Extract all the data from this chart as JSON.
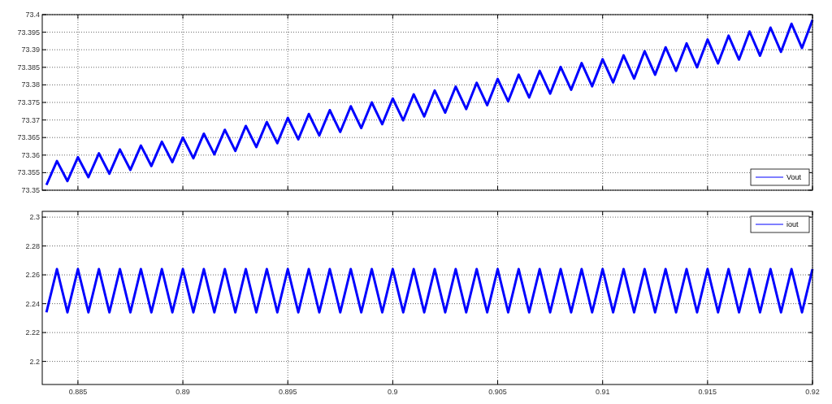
{
  "chart_data": [
    {
      "type": "line",
      "xlim": [
        0.8833,
        0.92
      ],
      "ylim": [
        73.35,
        73.4
      ],
      "xticks": [
        0.885,
        0.89,
        0.895,
        0.9,
        0.905,
        0.91,
        0.915,
        0.92
      ],
      "yticks": [
        73.35,
        73.355,
        73.36,
        73.365,
        73.37,
        73.375,
        73.38,
        73.385,
        73.39,
        73.395,
        73.4
      ],
      "grid": true,
      "legend": "bottom right",
      "tick_labels": "y",
      "marker": "none",
      "line_style": "solid",
      "x": [
        0.8835,
        0.884,
        0.8845,
        0.885,
        0.8855,
        0.886,
        0.8865,
        0.887,
        0.8875,
        0.888,
        0.8885,
        0.889,
        0.8895,
        0.89,
        0.8905,
        0.891,
        0.8915,
        0.892,
        0.8925,
        0.893,
        0.8935,
        0.894,
        0.8945,
        0.895,
        0.8955,
        0.896,
        0.8965,
        0.897,
        0.8975,
        0.898,
        0.8985,
        0.899,
        0.8995,
        0.9,
        0.9005,
        0.901,
        0.9015,
        0.902,
        0.9025,
        0.903,
        0.9035,
        0.904,
        0.9045,
        0.905,
        0.9055,
        0.906,
        0.9065,
        0.907,
        0.9075,
        0.908,
        0.9085,
        0.909,
        0.9095,
        0.91,
        0.9105,
        0.911,
        0.9115,
        0.912,
        0.9125,
        0.913,
        0.9135,
        0.914,
        0.9145,
        0.915,
        0.9155,
        0.916,
        0.9165,
        0.917,
        0.9175,
        0.918,
        0.9185,
        0.919,
        0.9195,
        0.92
      ],
      "series": [
        {
          "name": "Vout",
          "color": "#0000ff",
          "values": [
            73.3515,
            73.3583,
            73.3526,
            73.3594,
            73.3537,
            73.3605,
            73.3547,
            73.3616,
            73.3558,
            73.3627,
            73.3569,
            73.3638,
            73.358,
            73.365,
            73.3591,
            73.3661,
            73.3602,
            73.3672,
            73.3612,
            73.3683,
            73.3623,
            73.3694,
            73.3634,
            73.3706,
            73.3645,
            73.3717,
            73.3656,
            73.3728,
            73.3666,
            73.3739,
            73.3677,
            73.375,
            73.3688,
            73.3761,
            73.3699,
            73.3773,
            73.371,
            73.3784,
            73.3721,
            73.3795,
            73.3731,
            73.3806,
            73.3742,
            73.3817,
            73.3753,
            73.3829,
            73.3764,
            73.384,
            73.3775,
            73.3851,
            73.3786,
            73.3862,
            73.3796,
            73.3873,
            73.3807,
            73.3884,
            73.3818,
            73.3896,
            73.3829,
            73.3907,
            73.384,
            73.3918,
            73.385,
            73.3929,
            73.3861,
            73.394,
            73.3872,
            73.3952,
            73.3883,
            73.3963,
            73.3894,
            73.3974,
            73.3905,
            73.3985
          ]
        }
      ]
    },
    {
      "type": "line",
      "xlim": [
        0.8833,
        0.92
      ],
      "ylim": [
        2.184,
        2.304
      ],
      "xticks": [
        0.885,
        0.89,
        0.895,
        0.9,
        0.905,
        0.91,
        0.915,
        0.92
      ],
      "yticks": [
        2.2,
        2.22,
        2.24,
        2.26,
        2.28,
        2.3
      ],
      "grid": true,
      "legend": "top right",
      "marker": "none",
      "line_style": "solid",
      "x": [
        0.8835,
        0.884,
        0.8845,
        0.885,
        0.8855,
        0.886,
        0.8865,
        0.887,
        0.8875,
        0.888,
        0.8885,
        0.889,
        0.8895,
        0.89,
        0.8905,
        0.891,
        0.8915,
        0.892,
        0.8925,
        0.893,
        0.8935,
        0.894,
        0.8945,
        0.895,
        0.8955,
        0.896,
        0.8965,
        0.897,
        0.8975,
        0.898,
        0.8985,
        0.899,
        0.8995,
        0.9,
        0.9005,
        0.901,
        0.9015,
        0.902,
        0.9025,
        0.903,
        0.9035,
        0.904,
        0.9045,
        0.905,
        0.9055,
        0.906,
        0.9065,
        0.907,
        0.9075,
        0.908,
        0.9085,
        0.909,
        0.9095,
        0.91,
        0.9105,
        0.911,
        0.9115,
        0.912,
        0.9125,
        0.913,
        0.9135,
        0.914,
        0.9145,
        0.915,
        0.9155,
        0.916,
        0.9165,
        0.917,
        0.9175,
        0.918,
        0.9185,
        0.919,
        0.9195,
        0.92
      ],
      "series": [
        {
          "name": "iout",
          "color": "#0000ff",
          "values": [
            2.234,
            2.264,
            2.234,
            2.264,
            2.234,
            2.264,
            2.234,
            2.264,
            2.234,
            2.264,
            2.234,
            2.264,
            2.234,
            2.264,
            2.234,
            2.264,
            2.234,
            2.264,
            2.234,
            2.264,
            2.234,
            2.264,
            2.234,
            2.264,
            2.234,
            2.264,
            2.234,
            2.264,
            2.234,
            2.264,
            2.234,
            2.264,
            2.234,
            2.264,
            2.234,
            2.264,
            2.234,
            2.264,
            2.234,
            2.264,
            2.234,
            2.264,
            2.234,
            2.264,
            2.234,
            2.264,
            2.234,
            2.264,
            2.234,
            2.264,
            2.234,
            2.264,
            2.234,
            2.264,
            2.234,
            2.264,
            2.234,
            2.264,
            2.234,
            2.264,
            2.234,
            2.264,
            2.234,
            2.264,
            2.234,
            2.264,
            2.234,
            2.264,
            2.234,
            2.264,
            2.234,
            2.264,
            2.234,
            2.264
          ]
        }
      ]
    }
  ]
}
